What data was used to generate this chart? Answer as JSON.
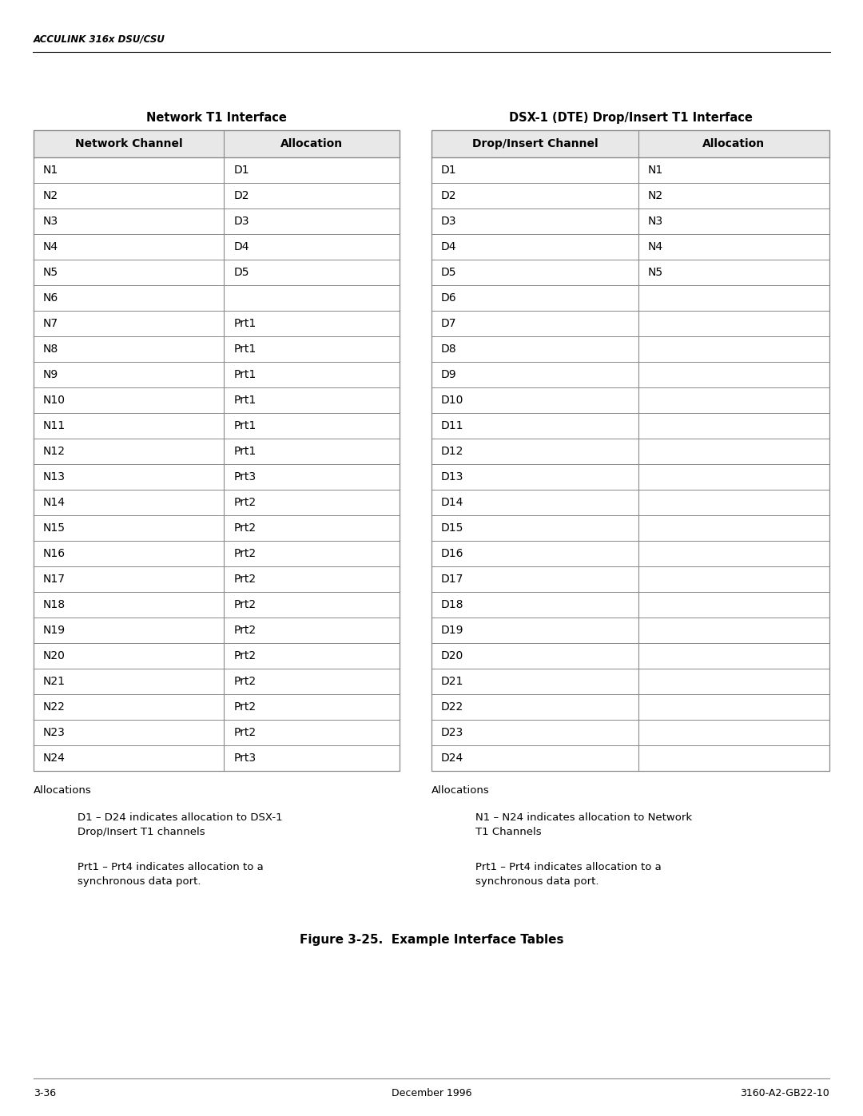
{
  "header_text": "ACCULINK 316x DSU/CSU",
  "left_table_title": "Network T1 Interface",
  "right_table_title": "DSX-1 (DTE) Drop/Insert T1 Interface",
  "left_headers": [
    "Network Channel",
    "Allocation"
  ],
  "right_headers": [
    "Drop/Insert Channel",
    "Allocation"
  ],
  "left_rows": [
    [
      "N1",
      "D1"
    ],
    [
      "N2",
      "D2"
    ],
    [
      "N3",
      "D3"
    ],
    [
      "N4",
      "D4"
    ],
    [
      "N5",
      "D5"
    ],
    [
      "N6",
      ""
    ],
    [
      "N7",
      "Prt1"
    ],
    [
      "N8",
      "Prt1"
    ],
    [
      "N9",
      "Prt1"
    ],
    [
      "N10",
      "Prt1"
    ],
    [
      "N11",
      "Prt1"
    ],
    [
      "N12",
      "Prt1"
    ],
    [
      "N13",
      "Prt3"
    ],
    [
      "N14",
      "Prt2"
    ],
    [
      "N15",
      "Prt2"
    ],
    [
      "N16",
      "Prt2"
    ],
    [
      "N17",
      "Prt2"
    ],
    [
      "N18",
      "Prt2"
    ],
    [
      "N19",
      "Prt2"
    ],
    [
      "N20",
      "Prt2"
    ],
    [
      "N21",
      "Prt2"
    ],
    [
      "N22",
      "Prt2"
    ],
    [
      "N23",
      "Prt2"
    ],
    [
      "N24",
      "Prt3"
    ]
  ],
  "right_rows": [
    [
      "D1",
      "N1"
    ],
    [
      "D2",
      "N2"
    ],
    [
      "D3",
      "N3"
    ],
    [
      "D4",
      "N4"
    ],
    [
      "D5",
      "N5"
    ],
    [
      "D6",
      ""
    ],
    [
      "D7",
      ""
    ],
    [
      "D8",
      ""
    ],
    [
      "D9",
      ""
    ],
    [
      "D10",
      ""
    ],
    [
      "D11",
      ""
    ],
    [
      "D12",
      ""
    ],
    [
      "D13",
      ""
    ],
    [
      "D14",
      ""
    ],
    [
      "D15",
      ""
    ],
    [
      "D16",
      ""
    ],
    [
      "D17",
      ""
    ],
    [
      "D18",
      ""
    ],
    [
      "D19",
      ""
    ],
    [
      "D20",
      ""
    ],
    [
      "D21",
      ""
    ],
    [
      "D22",
      ""
    ],
    [
      "D23",
      ""
    ],
    [
      "D24",
      ""
    ]
  ],
  "left_allocations_label": "Allocations",
  "right_allocations_label": "Allocations",
  "left_note1": "D1 – D24 indicates allocation to DSX-1\nDrop/Insert T1 channels",
  "left_note2": "Prt1 – Prt4 indicates allocation to a\nsynchronous data port.",
  "right_note1": "N1 – N24 indicates allocation to Network\nT1 Channels",
  "right_note2": "Prt1 – Prt4 indicates allocation to a\nsynchronous data port.",
  "figure_caption": "Figure 3-25.  Example Interface Tables",
  "footer_left": "3-36",
  "footer_center": "December 1996",
  "footer_right": "3160-A2-GB22-10",
  "bg_color": "#ffffff",
  "text_color": "#000000",
  "header_gray": "#e8e8e8",
  "line_color": "#888888"
}
